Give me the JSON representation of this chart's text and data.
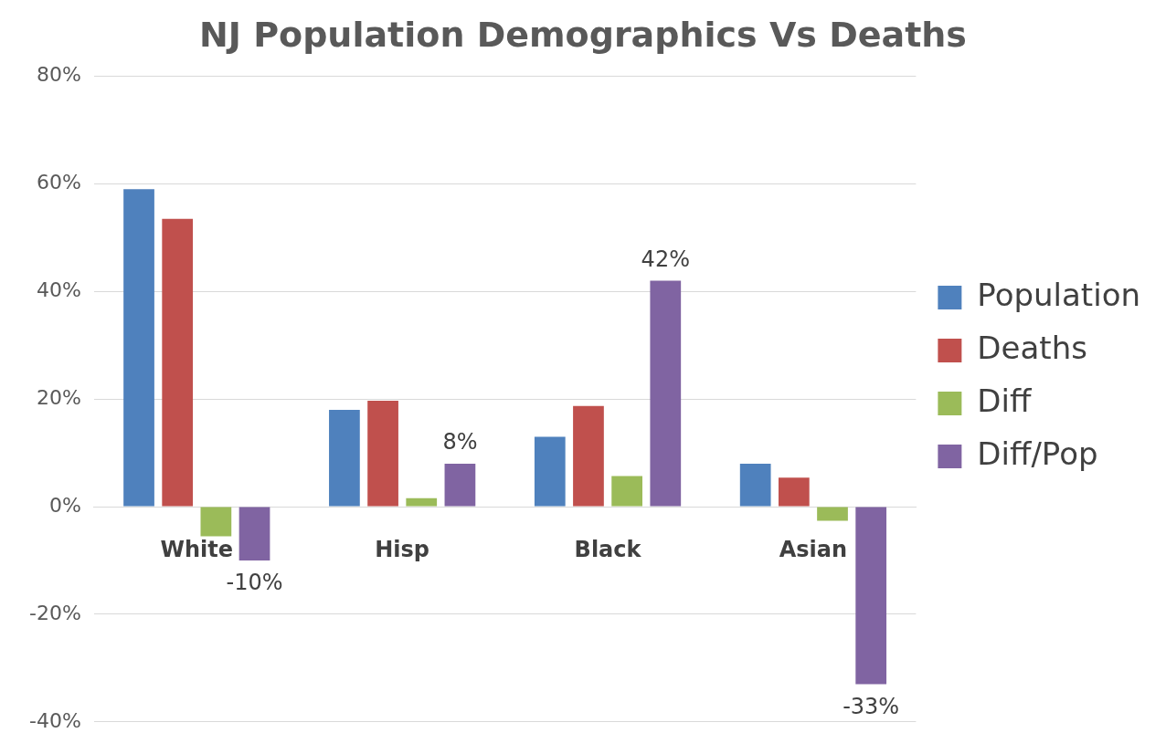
{
  "chart_data": {
    "type": "bar",
    "title": "NJ Population Demographics Vs Deaths",
    "categories": [
      "White",
      "Hisp",
      "Black",
      "Asian"
    ],
    "series": [
      {
        "name": "Population",
        "color": "#4f81bd",
        "values": [
          59,
          18,
          13,
          8
        ]
      },
      {
        "name": "Deaths",
        "color": "#c0504d",
        "values": [
          53.5,
          19.7,
          18.7,
          5.4
        ]
      },
      {
        "name": "Diff",
        "color": "#9bbb59",
        "values": [
          -5.5,
          1.6,
          5.7,
          -2.6
        ]
      },
      {
        "name": "Diff/Pop",
        "color": "#8064a2",
        "values": [
          -10,
          8,
          42,
          -33
        ],
        "value_labels": [
          "-10%",
          "8%",
          "42%",
          "-33%"
        ]
      }
    ],
    "ylim": [
      -40,
      80
    ],
    "yticks": [
      {
        "value": -40,
        "label": "-40%"
      },
      {
        "value": -20,
        "label": "-20%"
      },
      {
        "value": 0,
        "label": "0%"
      },
      {
        "value": 20,
        "label": "20%"
      },
      {
        "value": 40,
        "label": "40%"
      },
      {
        "value": 60,
        "label": "60%"
      },
      {
        "value": 80,
        "label": "80%"
      }
    ],
    "grid": "y",
    "legend": "right"
  }
}
